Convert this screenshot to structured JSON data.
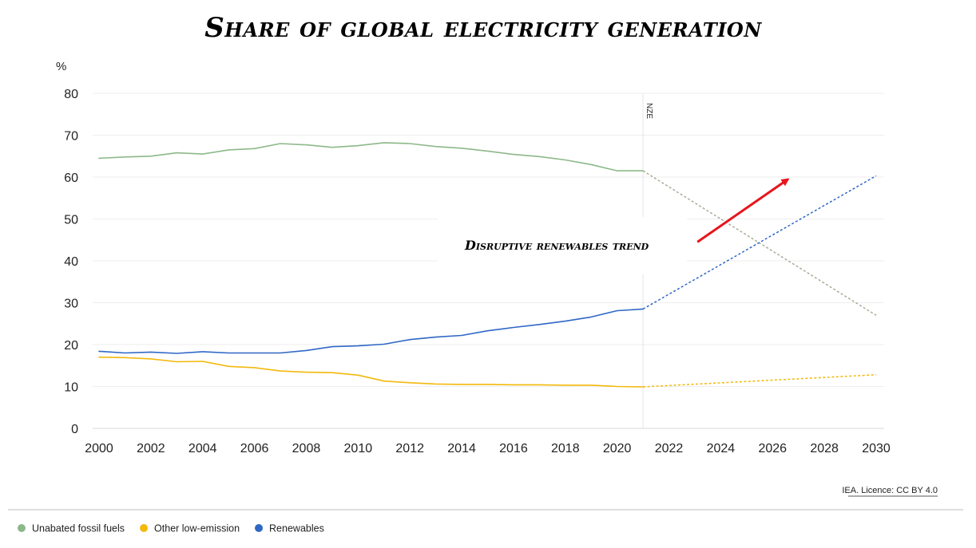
{
  "chart_data": {
    "type": "line",
    "title": "Share of global electricity generation",
    "ylabel": "%",
    "xlim": [
      2000,
      2030
    ],
    "ylim": [
      0,
      80
    ],
    "x_ticks": [
      2000,
      2002,
      2004,
      2006,
      2008,
      2010,
      2012,
      2014,
      2016,
      2018,
      2020,
      2022,
      2024,
      2026,
      2028,
      2030
    ],
    "y_ticks": [
      0,
      10,
      20,
      30,
      40,
      50,
      60,
      70,
      80
    ],
    "grid": "horizontal",
    "divider": {
      "x": 2021,
      "label": "NZE"
    },
    "series": [
      {
        "name": "Unabated fossil fuels",
        "color": "#8db889",
        "projection_color": "#a9ab98",
        "historical": {
          "x": [
            2000,
            2001,
            2002,
            2003,
            2004,
            2005,
            2006,
            2007,
            2008,
            2009,
            2010,
            2011,
            2012,
            2013,
            2014,
            2015,
            2016,
            2017,
            2018,
            2019,
            2020,
            2021
          ],
          "y": [
            64.5,
            64.8,
            65.0,
            65.8,
            65.5,
            66.5,
            66.8,
            68.0,
            67.7,
            67.1,
            67.5,
            68.2,
            68.0,
            67.3,
            66.9,
            66.2,
            65.4,
            64.9,
            64.1,
            63.0,
            61.5,
            61.5
          ]
        },
        "projection": {
          "x": [
            2021,
            2030
          ],
          "y": [
            61.5,
            27.0
          ]
        }
      },
      {
        "name": "Other low-emission",
        "color": "#f2b90c",
        "projection_color": "#f2b90c",
        "historical": {
          "x": [
            2000,
            2001,
            2002,
            2003,
            2004,
            2005,
            2006,
            2007,
            2008,
            2009,
            2010,
            2011,
            2012,
            2013,
            2014,
            2015,
            2016,
            2017,
            2018,
            2019,
            2020,
            2021
          ],
          "y": [
            17.0,
            16.9,
            16.6,
            15.9,
            16.0,
            14.8,
            14.5,
            13.7,
            13.4,
            13.3,
            12.7,
            11.3,
            10.9,
            10.6,
            10.5,
            10.5,
            10.4,
            10.4,
            10.3,
            10.3,
            10.0,
            9.9
          ]
        },
        "projection": {
          "x": [
            2021,
            2030
          ],
          "y": [
            9.9,
            12.8
          ]
        }
      },
      {
        "name": "Renewables",
        "color": "#2f67c6",
        "projection_color": "#2f67c6",
        "historical": {
          "x": [
            2000,
            2001,
            2002,
            2003,
            2004,
            2005,
            2006,
            2007,
            2008,
            2009,
            2010,
            2011,
            2012,
            2013,
            2014,
            2015,
            2016,
            2017,
            2018,
            2019,
            2020,
            2021
          ],
          "y": [
            18.4,
            18.0,
            18.2,
            17.9,
            18.3,
            18.0,
            18.0,
            18.0,
            18.6,
            19.5,
            19.7,
            20.1,
            21.2,
            21.8,
            22.2,
            23.3,
            24.1,
            24.8,
            25.6,
            26.6,
            28.1,
            28.5
          ]
        },
        "projection": {
          "x": [
            2021,
            2030
          ],
          "y": [
            28.5,
            60.3
          ]
        }
      }
    ],
    "annotation": {
      "text": "Disruptive renewables trend",
      "arrow_color": "#e8141c",
      "arrow_from": [
        2023.1,
        44.5
      ],
      "arrow_to": [
        2026.6,
        59.5
      ]
    },
    "source": "IEA. Licence: CC BY 4.0",
    "legend_position": "bottom-left"
  }
}
